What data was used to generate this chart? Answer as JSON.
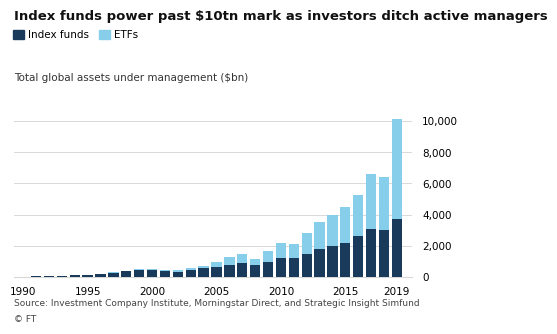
{
  "title": "Index funds power past $10tn mark as investors ditch active managers",
  "subtitle": "Total global assets under management ($bn)",
  "source": "Source: Investment Company Institute, Morningstar Direct, and Strategic Insight Simfund",
  "copyright": "© FT",
  "years": [
    1990,
    1991,
    1992,
    1993,
    1994,
    1995,
    1996,
    1997,
    1998,
    1999,
    2000,
    2001,
    2002,
    2003,
    2004,
    2005,
    2006,
    2007,
    2008,
    2009,
    2010,
    2011,
    2012,
    2013,
    2014,
    2015,
    2016,
    2017,
    2018,
    2019
  ],
  "index_funds": [
    30,
    40,
    55,
    75,
    100,
    130,
    200,
    290,
    380,
    480,
    460,
    400,
    350,
    440,
    550,
    650,
    780,
    900,
    750,
    950,
    1200,
    1200,
    1500,
    1800,
    2000,
    2200,
    2650,
    3100,
    3000,
    3700
  ],
  "etfs": [
    0,
    0,
    0,
    2,
    2,
    3,
    10,
    20,
    35,
    50,
    65,
    70,
    75,
    110,
    160,
    310,
    480,
    580,
    400,
    700,
    1000,
    950,
    1300,
    1700,
    2000,
    2300,
    2600,
    3500,
    3400,
    6400
  ],
  "index_funds_color": "#1a3a5c",
  "etfs_color": "#87ceeb",
  "background_color": "#ffffff",
  "grid_color": "#d8d8d8",
  "ylim": [
    0,
    11000
  ],
  "yticks": [
    0,
    2000,
    4000,
    6000,
    8000,
    10000
  ],
  "xlabel_ticks": [
    1990,
    1995,
    2000,
    2005,
    2010,
    2015,
    2019
  ],
  "title_fontsize": 9.5,
  "subtitle_fontsize": 7.5,
  "legend_fontsize": 7.5,
  "tick_fontsize": 7.5,
  "source_fontsize": 6.5
}
